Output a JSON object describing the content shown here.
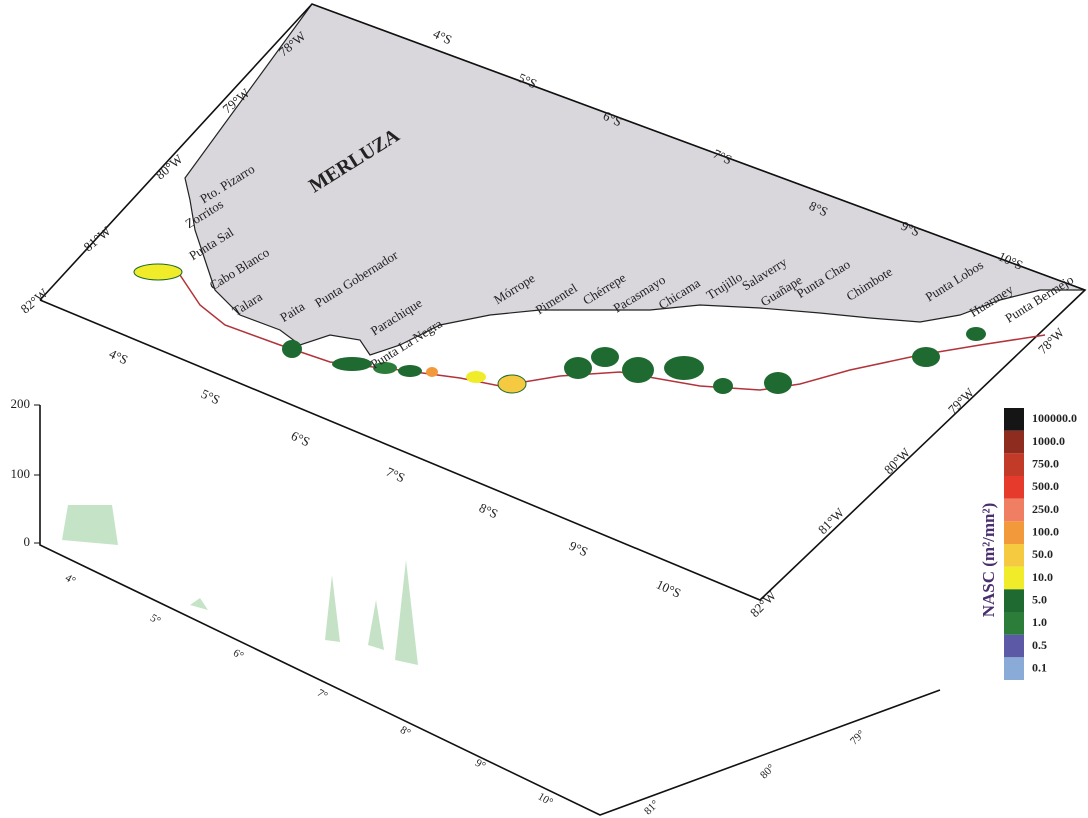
{
  "title": "MERLUZA",
  "places": [
    "Pto. Pizarro",
    "Zorritos",
    "Punta Sal",
    "Cabo Blanco",
    "Talara",
    "Paita",
    "Punta Gobernador",
    "Parachique",
    "Punta La Negra",
    "Mórrope",
    "Pimentel",
    "Chérrepe",
    "Pacasmayo",
    "Chicama",
    "Trujillo",
    "Salaverry",
    "Guañape",
    "Punta Chao",
    "Chimbote",
    "Punta Lobos",
    "Huarmey",
    "Punta Bermejo"
  ],
  "map_frame": {
    "left_edge_lon": [
      "82°W",
      "81°W",
      "80°W",
      "79°W",
      "78°W"
    ],
    "top_edge_lat": [
      "4°S",
      "5°S",
      "6°S",
      "7°S",
      "8°S",
      "9°S",
      "10°S"
    ],
    "bottom_edge_lat": [
      "4°S",
      "5°S",
      "6°S",
      "7°S",
      "8°S",
      "9°S",
      "10°S"
    ],
    "right_edge_lon": [
      "78°W",
      "79°W",
      "80°W",
      "81°W",
      "82°W"
    ]
  },
  "profile_panel": {
    "z_ticks": [
      "200",
      "100",
      "0"
    ],
    "lat_ticks": [
      "4°",
      "5°",
      "6°",
      "7°",
      "8°",
      "9°",
      "10°"
    ],
    "lon_ticks": [
      "81°",
      "80°",
      "79°"
    ]
  },
  "legend": {
    "title": "NASC (m²/mn²)",
    "items": [
      {
        "label": "100000.0",
        "color": "#151515"
      },
      {
        "label": "1000.0",
        "color": "#8e2c1f"
      },
      {
        "label": "750.0",
        "color": "#c23a28"
      },
      {
        "label": "500.0",
        "color": "#e63b2c"
      },
      {
        "label": "250.0",
        "color": "#f07e62"
      },
      {
        "label": "100.0",
        "color": "#f2993c"
      },
      {
        "label": "50.0",
        "color": "#f5c940"
      },
      {
        "label": "10.0",
        "color": "#f1ec2a"
      },
      {
        "label": "5.0",
        "color": "#1f6a30"
      },
      {
        "label": "1.0",
        "color": "#2d7d3a"
      },
      {
        "label": "0.5",
        "color": "#5c5aa6"
      },
      {
        "label": "0.1",
        "color": "#8aaad8"
      }
    ]
  }
}
